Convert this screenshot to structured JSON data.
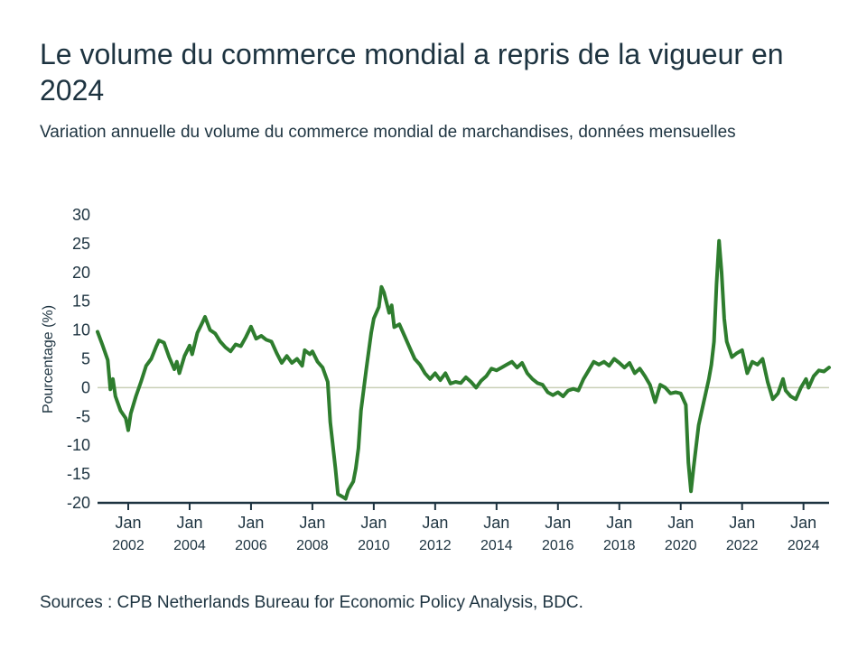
{
  "title": "Le volume du commerce mondial a repris de la vigueur en 2024",
  "subtitle": "Variation annuelle du volume du commerce mondial de marchandises, données mensuelles",
  "source": "Sources : CPB Netherlands Bureau for Economic Policy Analysis, BDC.",
  "colors": {
    "line": "#2e7d2e",
    "text": "#1d3340",
    "axis": "#1d3340",
    "zero_line": "#c9cfb6"
  },
  "chart_data": {
    "type": "line",
    "title": "Le volume du commerce mondial a repris de la vigueur en 2024",
    "subtitle": "Variation annuelle du volume du commerce mondial de marchandises, données mensuelles",
    "xlabel": "",
    "ylabel": "Pourcentage (%)",
    "ylim": [
      -20,
      30
    ],
    "xlim": [
      "2001-01",
      "2024-11"
    ],
    "yticks": [
      30,
      25,
      20,
      15,
      10,
      5,
      0,
      -5,
      -10,
      -15,
      -20
    ],
    "xticks": [
      {
        "date": "2002-01",
        "month": "Jan",
        "year": "2002"
      },
      {
        "date": "2004-01",
        "month": "Jan",
        "year": "2004"
      },
      {
        "date": "2006-01",
        "month": "Jan",
        "year": "2006"
      },
      {
        "date": "2008-01",
        "month": "Jan",
        "year": "2008"
      },
      {
        "date": "2010-01",
        "month": "Jan",
        "year": "2010"
      },
      {
        "date": "2012-01",
        "month": "Jan",
        "year": "2012"
      },
      {
        "date": "2014-01",
        "month": "Jan",
        "year": "2014"
      },
      {
        "date": "2016-01",
        "month": "Jan",
        "year": "2016"
      },
      {
        "date": "2018-01",
        "month": "Jan",
        "year": "2018"
      },
      {
        "date": "2020-01",
        "month": "Jan",
        "year": "2020"
      },
      {
        "date": "2022-01",
        "month": "Jan",
        "year": "2022"
      },
      {
        "date": "2024-01",
        "month": "Jan",
        "year": "2024"
      }
    ],
    "grid": false,
    "series": [
      {
        "points": [
          [
            "2001-01",
            9.7
          ],
          [
            "2001-03",
            7.3
          ],
          [
            "2001-05",
            4.8
          ],
          [
            "2001-06",
            -0.3
          ],
          [
            "2001-07",
            1.5
          ],
          [
            "2001-08",
            -1.5
          ],
          [
            "2001-10",
            -4.0
          ],
          [
            "2001-12",
            -5.3
          ],
          [
            "2002-01",
            -7.4
          ],
          [
            "2002-02",
            -4.5
          ],
          [
            "2002-04",
            -1.5
          ],
          [
            "2002-06",
            1.0
          ],
          [
            "2002-08",
            3.8
          ],
          [
            "2002-10",
            5.0
          ],
          [
            "2002-12",
            7.2
          ],
          [
            "2003-01",
            8.2
          ],
          [
            "2003-03",
            7.8
          ],
          [
            "2003-05",
            5.3
          ],
          [
            "2003-07",
            3.2
          ],
          [
            "2003-08",
            4.5
          ],
          [
            "2003-09",
            2.5
          ],
          [
            "2003-11",
            5.5
          ],
          [
            "2004-01",
            7.3
          ],
          [
            "2004-02",
            5.8
          ],
          [
            "2004-04",
            9.5
          ],
          [
            "2004-06",
            11.3
          ],
          [
            "2004-07",
            12.3
          ],
          [
            "2004-09",
            10.0
          ],
          [
            "2004-11",
            9.4
          ],
          [
            "2005-01",
            8.0
          ],
          [
            "2005-03",
            7.0
          ],
          [
            "2005-05",
            6.3
          ],
          [
            "2005-07",
            7.5
          ],
          [
            "2005-09",
            7.2
          ],
          [
            "2005-11",
            8.8
          ],
          [
            "2006-01",
            10.6
          ],
          [
            "2006-03",
            8.5
          ],
          [
            "2006-05",
            9.0
          ],
          [
            "2006-07",
            8.3
          ],
          [
            "2006-09",
            8.0
          ],
          [
            "2006-11",
            6.0
          ],
          [
            "2007-01",
            4.3
          ],
          [
            "2007-03",
            5.5
          ],
          [
            "2007-05",
            4.3
          ],
          [
            "2007-07",
            5.0
          ],
          [
            "2007-09",
            3.8
          ],
          [
            "2007-10",
            6.5
          ],
          [
            "2007-12",
            5.8
          ],
          [
            "2008-01",
            6.3
          ],
          [
            "2008-03",
            4.5
          ],
          [
            "2008-05",
            3.5
          ],
          [
            "2008-07",
            1.0
          ],
          [
            "2008-08",
            -6.0
          ],
          [
            "2008-10",
            -14.0
          ],
          [
            "2008-11",
            -18.5
          ],
          [
            "2009-01",
            -19.0
          ],
          [
            "2009-02",
            -19.3
          ],
          [
            "2009-03",
            -17.8
          ],
          [
            "2009-05",
            -16.3
          ],
          [
            "2009-06",
            -14.0
          ],
          [
            "2009-07",
            -10.5
          ],
          [
            "2009-08",
            -4.0
          ],
          [
            "2009-10",
            3.0
          ],
          [
            "2009-12",
            9.5
          ],
          [
            "2010-01",
            12.0
          ],
          [
            "2010-03",
            14.0
          ],
          [
            "2010-04",
            17.5
          ],
          [
            "2010-05",
            16.5
          ],
          [
            "2010-07",
            13.0
          ],
          [
            "2010-08",
            14.3
          ],
          [
            "2010-09",
            10.5
          ],
          [
            "2010-11",
            11.0
          ],
          [
            "2011-01",
            9.0
          ],
          [
            "2011-03",
            7.0
          ],
          [
            "2011-05",
            5.0
          ],
          [
            "2011-07",
            4.0
          ],
          [
            "2011-09",
            2.5
          ],
          [
            "2011-11",
            1.5
          ],
          [
            "2012-01",
            2.5
          ],
          [
            "2012-03",
            1.3
          ],
          [
            "2012-05",
            2.5
          ],
          [
            "2012-07",
            0.7
          ],
          [
            "2012-09",
            1.0
          ],
          [
            "2012-11",
            0.8
          ],
          [
            "2013-01",
            1.8
          ],
          [
            "2013-03",
            1.0
          ],
          [
            "2013-05",
            0.0
          ],
          [
            "2013-07",
            1.2
          ],
          [
            "2013-09",
            2.0
          ],
          [
            "2013-11",
            3.3
          ],
          [
            "2014-01",
            3.0
          ],
          [
            "2014-03",
            3.5
          ],
          [
            "2014-05",
            4.0
          ],
          [
            "2014-07",
            4.5
          ],
          [
            "2014-09",
            3.5
          ],
          [
            "2014-11",
            4.3
          ],
          [
            "2015-01",
            2.5
          ],
          [
            "2015-03",
            1.5
          ],
          [
            "2015-05",
            0.8
          ],
          [
            "2015-07",
            0.5
          ],
          [
            "2015-09",
            -0.8
          ],
          [
            "2015-11",
            -1.3
          ],
          [
            "2016-01",
            -0.8
          ],
          [
            "2016-03",
            -1.5
          ],
          [
            "2016-05",
            -0.5
          ],
          [
            "2016-07",
            -0.2
          ],
          [
            "2016-09",
            -0.5
          ],
          [
            "2016-11",
            1.5
          ],
          [
            "2017-01",
            3.0
          ],
          [
            "2017-03",
            4.5
          ],
          [
            "2017-05",
            4.0
          ],
          [
            "2017-07",
            4.5
          ],
          [
            "2017-09",
            3.8
          ],
          [
            "2017-11",
            5.0
          ],
          [
            "2018-01",
            4.3
          ],
          [
            "2018-03",
            3.5
          ],
          [
            "2018-05",
            4.3
          ],
          [
            "2018-07",
            2.5
          ],
          [
            "2018-09",
            3.3
          ],
          [
            "2018-11",
            2.0
          ],
          [
            "2019-01",
            0.5
          ],
          [
            "2019-03",
            -2.5
          ],
          [
            "2019-05",
            0.5
          ],
          [
            "2019-07",
            0.0
          ],
          [
            "2019-09",
            -1.0
          ],
          [
            "2019-11",
            -0.8
          ],
          [
            "2020-01",
            -1.0
          ],
          [
            "2020-03",
            -3.0
          ],
          [
            "2020-04",
            -13.0
          ],
          [
            "2020-05",
            -18.0
          ],
          [
            "2020-06",
            -14.0
          ],
          [
            "2020-08",
            -6.5
          ],
          [
            "2020-10",
            -2.5
          ],
          [
            "2020-12",
            1.5
          ],
          [
            "2021-01",
            4.0
          ],
          [
            "2021-02",
            8.0
          ],
          [
            "2021-03",
            18.0
          ],
          [
            "2021-04",
            25.5
          ],
          [
            "2021-05",
            20.0
          ],
          [
            "2021-06",
            12.0
          ],
          [
            "2021-07",
            8.0
          ],
          [
            "2021-09",
            5.3
          ],
          [
            "2021-11",
            6.0
          ],
          [
            "2022-01",
            6.5
          ],
          [
            "2022-03",
            2.5
          ],
          [
            "2022-05",
            4.5
          ],
          [
            "2022-07",
            4.0
          ],
          [
            "2022-09",
            5.0
          ],
          [
            "2022-11",
            1.0
          ],
          [
            "2023-01",
            -2.0
          ],
          [
            "2023-03",
            -1.0
          ],
          [
            "2023-05",
            1.5
          ],
          [
            "2023-06",
            -0.5
          ],
          [
            "2023-08",
            -1.5
          ],
          [
            "2023-10",
            -2.0
          ],
          [
            "2023-12",
            0.0
          ],
          [
            "2024-02",
            1.5
          ],
          [
            "2024-03",
            0.0
          ],
          [
            "2024-05",
            2.0
          ],
          [
            "2024-07",
            3.0
          ],
          [
            "2024-09",
            2.8
          ],
          [
            "2024-11",
            3.5
          ]
        ]
      }
    ]
  }
}
